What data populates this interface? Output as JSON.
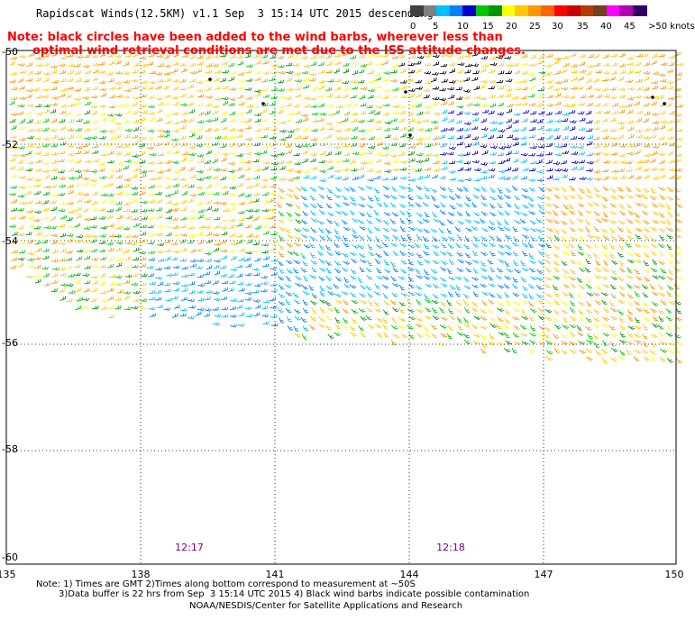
{
  "header": {
    "title": "Rapidscat Winds(12.5KM) v1.1 Sep  3 15:14 UTC 2015 descending"
  },
  "note": {
    "line1": "Note: black circles have been added to the wind barbs, wherever less than",
    "line2": "optimal wind retrieval conditions are met due to the ISS attitude changes."
  },
  "legend": {
    "colors": [
      "#404040",
      "#7f7f7f",
      "#00bfff",
      "#007fff",
      "#0000c8",
      "#00c800",
      "#009600",
      "#ffff00",
      "#ffc800",
      "#ff9600",
      "#ff6400",
      "#ff0000",
      "#c80000",
      "#b43c00",
      "#783c1e",
      "#ff00ff",
      "#b400b4",
      "#320064"
    ],
    "labels": [
      "0",
      "5",
      "10",
      "15",
      "20",
      "25",
      "30",
      "35",
      "40",
      "45",
      ">50 knots"
    ]
  },
  "axes": {
    "lon_labels": [
      "135",
      "138",
      "141",
      "144",
      "147",
      "150"
    ],
    "lat_labels": [
      "-50",
      "-52",
      "-54",
      "-56",
      "-58",
      "-60"
    ]
  },
  "times": [
    "12:17",
    "12:18"
  ],
  "footer": {
    "note_line1": "Note: 1) Times are GMT 2)Times along bottom correspond to measurement at ~50S",
    "note_line2": "3)Data buffer is 22 hrs from Sep  3 15:14 UTC 2015 4) Black wind barbs indicate possible contamination",
    "credit": "NOAA/NESDIS/Center for Satellite Applications and Research"
  }
}
